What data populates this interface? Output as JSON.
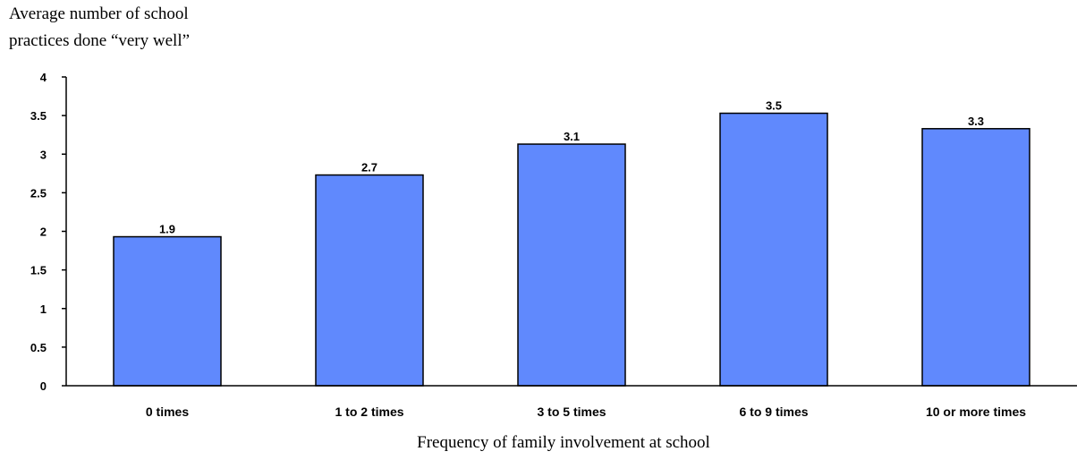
{
  "chart_data": {
    "type": "bar",
    "ylabel_lines": [
      "Average number of school",
      "practices done “very well”"
    ],
    "xlabel": "Frequency of family involvement at school",
    "categories": [
      "0 times",
      "1 to 2 times",
      "3 to 5 times",
      "6 to 9 times",
      "10 or more times"
    ],
    "values": [
      1.93,
      2.73,
      3.13,
      3.53,
      3.33
    ],
    "data_labels": [
      "1.9",
      "2.7",
      "3.1",
      "3.5",
      "3.3"
    ],
    "yticks": [
      0,
      0.5,
      1,
      1.5,
      2,
      2.5,
      3,
      3.5,
      4
    ],
    "ytick_labels": [
      "0",
      "0.5",
      "1",
      "1.5",
      "2",
      "2.5",
      "3",
      "3.5",
      "4"
    ],
    "ylim": [
      0,
      4
    ],
    "bar_color": "#6089fd",
    "grid": false,
    "legend": "none"
  }
}
